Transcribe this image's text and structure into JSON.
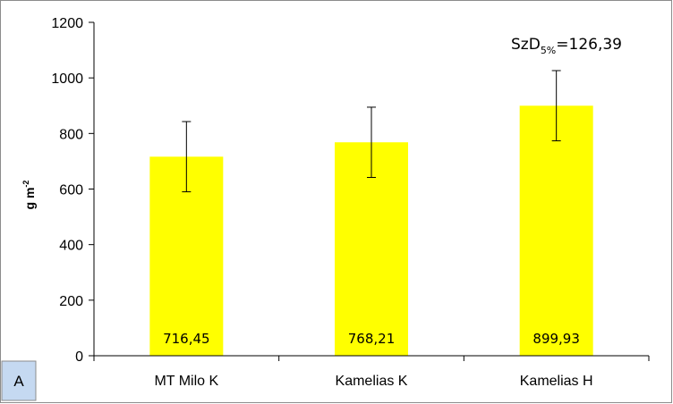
{
  "chart_data": {
    "type": "bar",
    "categories": [
      "MT Milo K",
      "Kamelias K",
      "Kamelias H"
    ],
    "values": [
      716.45,
      768.21,
      899.93
    ],
    "value_labels": [
      "716,45",
      "768,21",
      "899,93"
    ],
    "error": [
      126.39,
      126.39,
      126.39
    ],
    "ylim": [
      0,
      1200
    ],
    "yticks": [
      0,
      200,
      400,
      600,
      800,
      1000,
      1200
    ],
    "ytick_labels": [
      "0",
      "200",
      "400",
      "600",
      "800",
      "1000",
      "1200"
    ],
    "ylabel": "g m",
    "ylabel_sup": "-2",
    "grid": false,
    "bar_color": "#FFFF00",
    "annotation": {
      "prefix": "SzD",
      "sub": "5%",
      "suffix": "=126,39"
    },
    "panel_label": "A"
  }
}
